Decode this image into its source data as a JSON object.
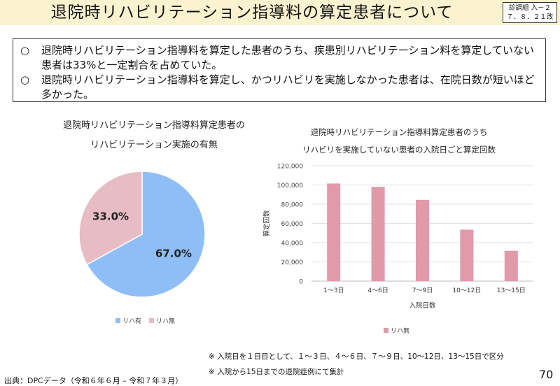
{
  "header": {
    "title": "退院時リハビリテーション指導料の算定患者について",
    "badge_line1": "診調組 入－２",
    "badge_line2": "７．８．２１改"
  },
  "summary": {
    "bullet_mark": "○",
    "point1": "退院時リハビリテーション指導料を算定した患者のうち、疾患別リハビリテーション料を算定していない患者は33%と一定割合を占めていた。",
    "point2": "退院時リハビリテーション指導料を算定し、かつリハビリを実施しなかった患者は、在院日数が短いほど多かった。"
  },
  "chart_data": [
    {
      "type": "pie",
      "title_line1": "退院時リハビリテーション指導料算定患者の",
      "title_line2": "リハビリテーション実施の有無",
      "categories": [
        "リハ有",
        "リハ無"
      ],
      "values": [
        67.0,
        33.0
      ],
      "labels": [
        "67.0%",
        "33.0%"
      ],
      "colors": [
        "#8ebef5",
        "#e7bcc5"
      ],
      "legend": "bottom"
    },
    {
      "type": "bar",
      "title_line1": "退院時リハビリテーション指導料算定患者のうち",
      "title_line2": "リハビリを実施していない患者の入院日ごと算定回数",
      "categories": [
        "1～3日",
        "4～6日",
        "7～9日",
        "10～12日",
        "13～15日"
      ],
      "values": [
        101500,
        98000,
        84500,
        53500,
        31500
      ],
      "xlabel": "入院日数",
      "ylabel": "算定回数",
      "ylim": [
        0,
        120000
      ],
      "yticks": [
        "0",
        "20,000",
        "40,000",
        "60,000",
        "80,000",
        "100,000",
        "120,000"
      ],
      "series_name": "リハ無",
      "color": "#e09aa9",
      "legend": "bottom",
      "grid": true
    }
  ],
  "notes": [
    "※ 入院日を１日目として、１～３日、４～６日、７～９日、10～12日、13～15日で区分",
    "※ 入院から15日までの退院症例にて集計"
  ],
  "source": "出典：DPCデータ（令和６年６月 – 令和７年３月）",
  "page_number": "70"
}
